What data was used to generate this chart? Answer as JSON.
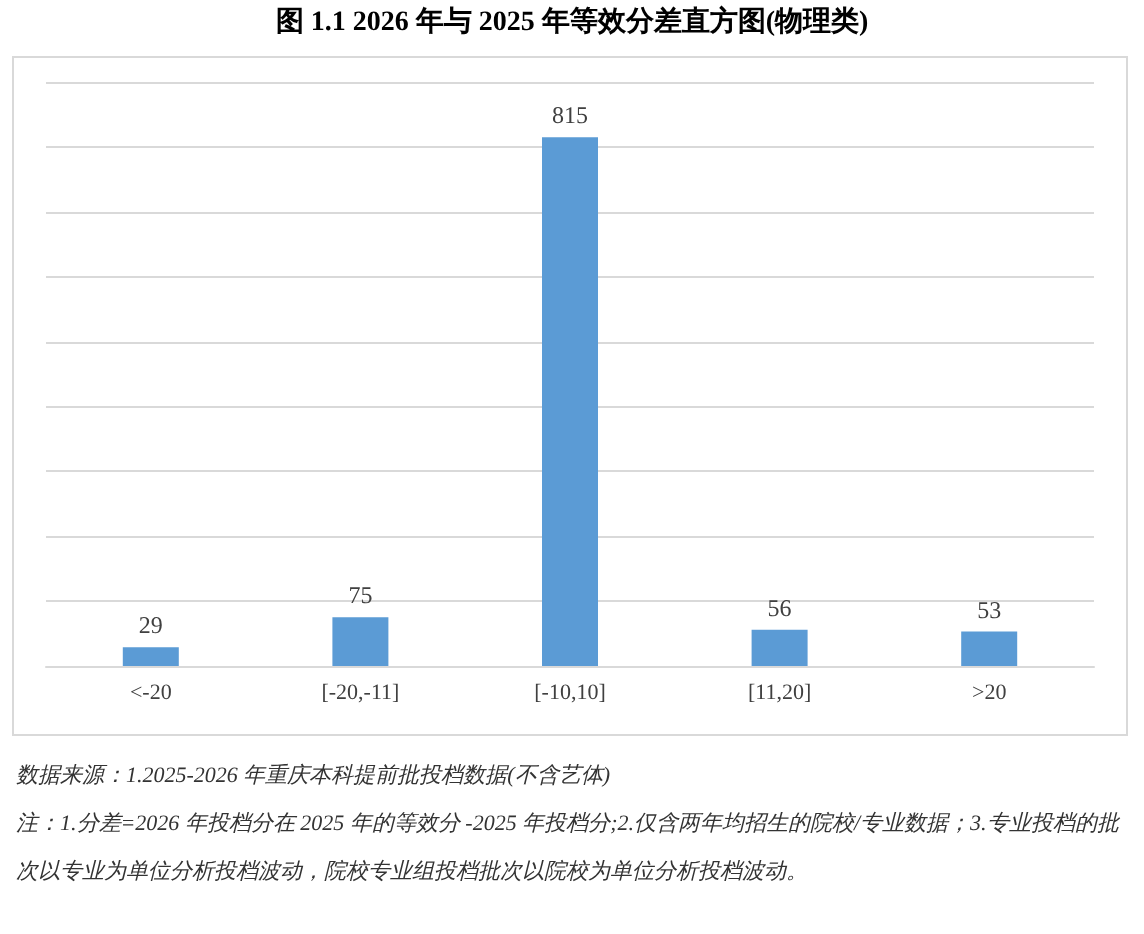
{
  "chart_data": {
    "type": "bar",
    "title": "图 1.1  2026 年与 2025 年等效分差直方图(物理类)",
    "categories": [
      "<-20",
      "[-20,-11]",
      "[-10,10]",
      "[11,20]",
      ">20"
    ],
    "values": [
      29,
      75,
      815,
      56,
      53
    ],
    "color": "#5b9bd5",
    "data_labels": true,
    "ylim": [
      0,
      900
    ],
    "yticks": [
      {
        "value": 0,
        "label": null
      },
      {
        "value": 100,
        "label": null
      },
      {
        "value": 200,
        "label": null
      },
      {
        "value": 300,
        "label": null
      },
      {
        "value": 400,
        "label": null
      },
      {
        "value": 500,
        "label": null
      },
      {
        "value": 600,
        "label": null
      },
      {
        "value": 700,
        "label": null
      },
      {
        "value": 800,
        "label": null
      },
      {
        "value": 900,
        "label": null
      }
    ],
    "grid": "y",
    "tick_labels": "x",
    "annotations": [
      "数据来源：1.2025-2026 年重庆本科提前批投档数据(不含艺体)",
      "注：1.分差=2026 年投档分在 2025 年的等效分 -2025 年投档分;2.仅含两年均招生的院校/专业数据；3.专业投档的批次以专业为单位分析投档波动，院校专业组投档批次以院校为单位分析投档波动。"
    ]
  }
}
